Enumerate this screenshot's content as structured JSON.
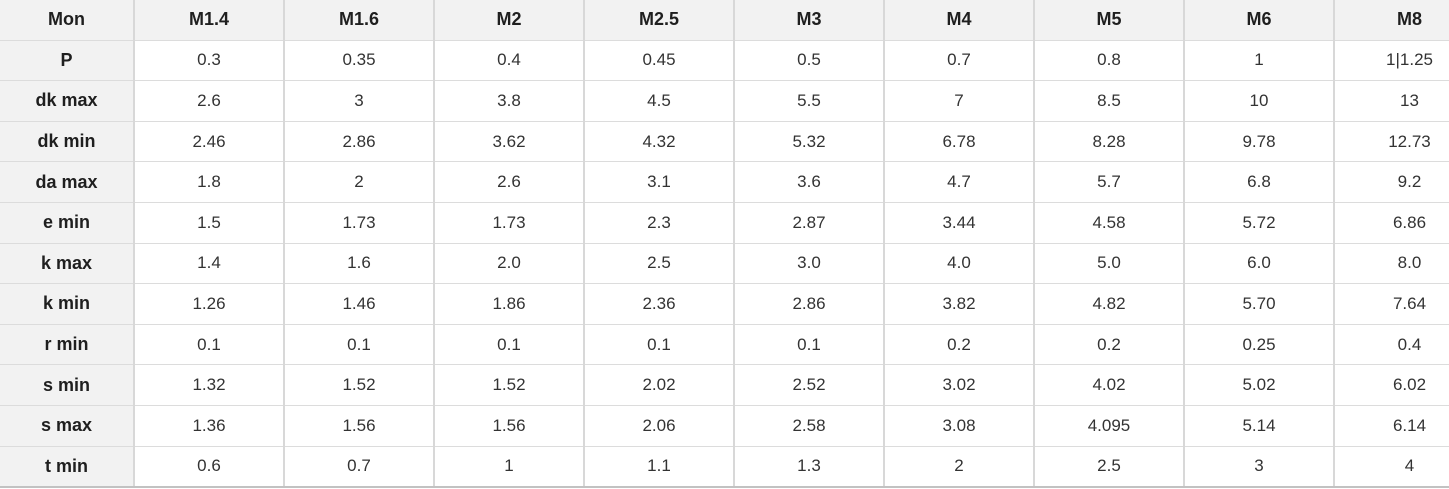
{
  "chart_data": {
    "type": "table",
    "title": "",
    "columns": [
      "Mon",
      "M1.4",
      "M1.6",
      "M2",
      "M2.5",
      "M3",
      "M4",
      "M5",
      "M6",
      "M8"
    ],
    "rows": [
      {
        "label": "P",
        "values": [
          "0.3",
          "0.35",
          "0.4",
          "0.45",
          "0.5",
          "0.7",
          "0.8",
          "1",
          "1|1.25"
        ]
      },
      {
        "label": "dk max",
        "values": [
          "2.6",
          "3",
          "3.8",
          "4.5",
          "5.5",
          "7",
          "8.5",
          "10",
          "13"
        ]
      },
      {
        "label": "dk min",
        "values": [
          "2.46",
          "2.86",
          "3.62",
          "4.32",
          "5.32",
          "6.78",
          "8.28",
          "9.78",
          "12.73"
        ]
      },
      {
        "label": "da max",
        "values": [
          "1.8",
          "2",
          "2.6",
          "3.1",
          "3.6",
          "4.7",
          "5.7",
          "6.8",
          "9.2"
        ]
      },
      {
        "label": "e min",
        "values": [
          "1.5",
          "1.73",
          "1.73",
          "2.3",
          "2.87",
          "3.44",
          "4.58",
          "5.72",
          "6.86"
        ]
      },
      {
        "label": "k max",
        "values": [
          "1.4",
          "1.6",
          "2.0",
          "2.5",
          "3.0",
          "4.0",
          "5.0",
          "6.0",
          "8.0"
        ]
      },
      {
        "label": "k min",
        "values": [
          "1.26",
          "1.46",
          "1.86",
          "2.36",
          "2.86",
          "3.82",
          "4.82",
          "5.70",
          "7.64"
        ]
      },
      {
        "label": "r min",
        "values": [
          "0.1",
          "0.1",
          "0.1",
          "0.1",
          "0.1",
          "0.2",
          "0.2",
          "0.25",
          "0.4"
        ]
      },
      {
        "label": "s min",
        "values": [
          "1.32",
          "1.52",
          "1.52",
          "2.02",
          "2.52",
          "3.02",
          "4.02",
          "5.02",
          "6.02"
        ]
      },
      {
        "label": "s max",
        "values": [
          "1.36",
          "1.56",
          "1.56",
          "2.06",
          "2.58",
          "3.08",
          "4.095",
          "5.14",
          "6.14"
        ]
      },
      {
        "label": "t min",
        "values": [
          "0.6",
          "0.7",
          "1",
          "1.1",
          "1.3",
          "2",
          "2.5",
          "3",
          "4"
        ]
      }
    ],
    "layout": {
      "grid": true,
      "header_background": "#f2f2f2",
      "label_column_background": "#f2f2f2",
      "body_background": "#ffffff",
      "grid_color": "#d8d8d8",
      "header_text_color": "#1f1f1f",
      "body_text_color": "#333333"
    }
  }
}
